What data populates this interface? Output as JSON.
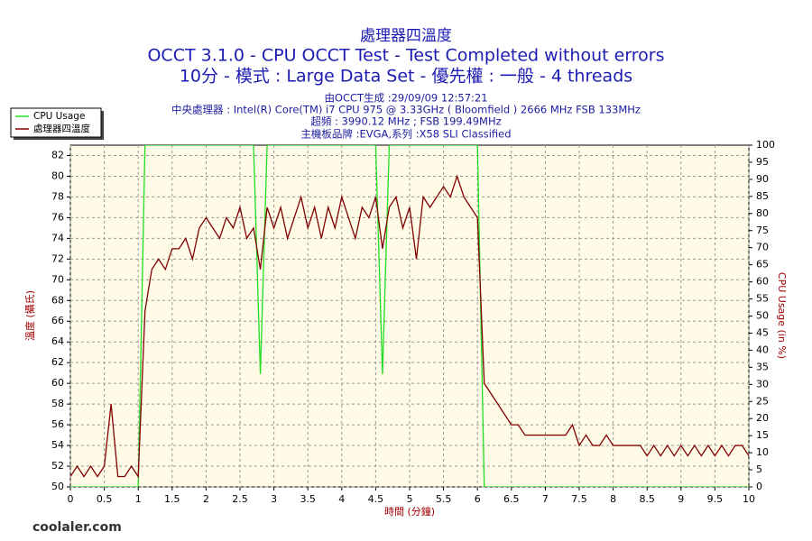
{
  "chart_data": {
    "type": "line",
    "title": [
      "處理器四溫度",
      "OCCT 3.1.0 - CPU OCCT Test - Test Completed without errors",
      "10分 - 模式 : Large Data Set - 優先權 : 一般 - 4 threads"
    ],
    "subtitle": [
      "由OCCT生成 :29/09/09 12:57:21",
      "中央處理器 : Intel(R) Core(TM) i7 CPU 975 @ 3.33GHz ( Bloomfield ) 2666 MHz FSB 133MHz",
      "超頻 : 3990.12 MHz ; FSB 199.49MHz",
      "主機板品牌 :EVGA,系列 :X58 SLI Classified"
    ],
    "x_label": "時間 (分鐘)",
    "y_label": "溫度 (攝氏)",
    "y2_label": "CPU Usage (in %)",
    "watermark": "coolaler.com",
    "x": [
      0,
      0.1,
      0.2,
      0.3,
      0.4,
      0.5,
      0.6,
      0.7,
      0.8,
      0.9,
      1,
      1.1,
      1.2,
      1.3,
      1.4,
      1.5,
      1.6,
      1.7,
      1.8,
      1.9,
      2,
      2.1,
      2.2,
      2.3,
      2.4,
      2.5,
      2.6,
      2.7,
      2.8,
      2.9,
      3,
      3.1,
      3.2,
      3.3,
      3.4,
      3.5,
      3.6,
      3.7,
      3.8,
      3.9,
      4,
      4.1,
      4.2,
      4.3,
      4.4,
      4.5,
      4.6,
      4.7,
      4.8,
      4.9,
      5,
      5.1,
      5.2,
      5.3,
      5.4,
      5.5,
      5.6,
      5.7,
      5.8,
      5.9,
      6,
      6.1,
      6.2,
      6.3,
      6.4,
      6.5,
      6.6,
      6.7,
      6.8,
      6.9,
      7,
      7.1,
      7.2,
      7.3,
      7.4,
      7.5,
      7.6,
      7.7,
      7.8,
      7.9,
      8,
      8.1,
      8.2,
      8.3,
      8.4,
      8.5,
      8.6,
      8.7,
      8.8,
      8.9,
      9,
      9.1,
      9.2,
      9.3,
      9.4,
      9.5,
      9.6,
      9.7,
      9.8,
      9.9,
      10
    ],
    "series": [
      {
        "name": "CPU Usage",
        "color": "#22dd22",
        "axis": "y2",
        "values": [
          0,
          0,
          0,
          0,
          0,
          0,
          0,
          0,
          0,
          0,
          0,
          100,
          100,
          100,
          100,
          100,
          100,
          100,
          100,
          100,
          100,
          100,
          100,
          100,
          100,
          100,
          100,
          100,
          33,
          100,
          100,
          100,
          100,
          100,
          100,
          100,
          100,
          100,
          100,
          100,
          100,
          100,
          100,
          100,
          100,
          100,
          33,
          100,
          100,
          100,
          100,
          100,
          100,
          100,
          100,
          100,
          100,
          100,
          100,
          100,
          100,
          0,
          0,
          0,
          0,
          0,
          0,
          0,
          0,
          0,
          0,
          0,
          0,
          0,
          0,
          0,
          0,
          0,
          0,
          0,
          0,
          0,
          0,
          0,
          0,
          0,
          0,
          0,
          0,
          0,
          0,
          0,
          0,
          0,
          0,
          0,
          0,
          0,
          0,
          0,
          0
        ]
      },
      {
        "name": "處理器四溫度",
        "color": "#800000",
        "values": [
          51,
          52,
          51,
          52,
          51,
          52,
          58,
          51,
          51,
          52,
          51,
          67,
          71,
          72,
          71,
          73,
          73,
          74,
          72,
          75,
          76,
          75,
          74,
          76,
          75,
          77,
          74,
          75,
          71,
          77,
          75,
          77,
          74,
          76,
          78,
          75,
          77,
          74,
          77,
          75,
          78,
          76,
          74,
          77,
          76,
          78,
          73,
          77,
          78,
          75,
          77,
          72,
          78,
          77,
          78,
          79,
          78,
          80,
          78,
          77,
          76,
          60,
          59,
          58,
          57,
          56,
          56,
          55,
          55,
          55,
          55,
          55,
          55,
          55,
          56,
          54,
          55,
          54,
          54,
          55,
          54,
          54,
          54,
          54,
          54,
          53,
          54,
          53,
          54,
          53,
          54,
          53,
          54,
          53,
          54,
          53,
          54,
          53,
          54,
          54,
          53
        ]
      }
    ],
    "xlim": [
      0,
      10
    ],
    "xticks": [
      0,
      0.5,
      1,
      1.5,
      2,
      2.5,
      3,
      3.5,
      4,
      4.5,
      5,
      5.5,
      6,
      6.5,
      7,
      7.5,
      8,
      8.5,
      9,
      9.5,
      10
    ],
    "ylim": [
      50,
      83
    ],
    "yticks": [
      50,
      52,
      54,
      56,
      58,
      60,
      62,
      64,
      66,
      68,
      70,
      72,
      74,
      76,
      78,
      80,
      82
    ],
    "y2lim": [
      0,
      100
    ],
    "y2ticks": [
      0,
      5,
      10,
      15,
      20,
      25,
      30,
      35,
      40,
      45,
      50,
      55,
      60,
      65,
      70,
      75,
      80,
      85,
      90,
      95,
      100
    ],
    "grid": true
  }
}
